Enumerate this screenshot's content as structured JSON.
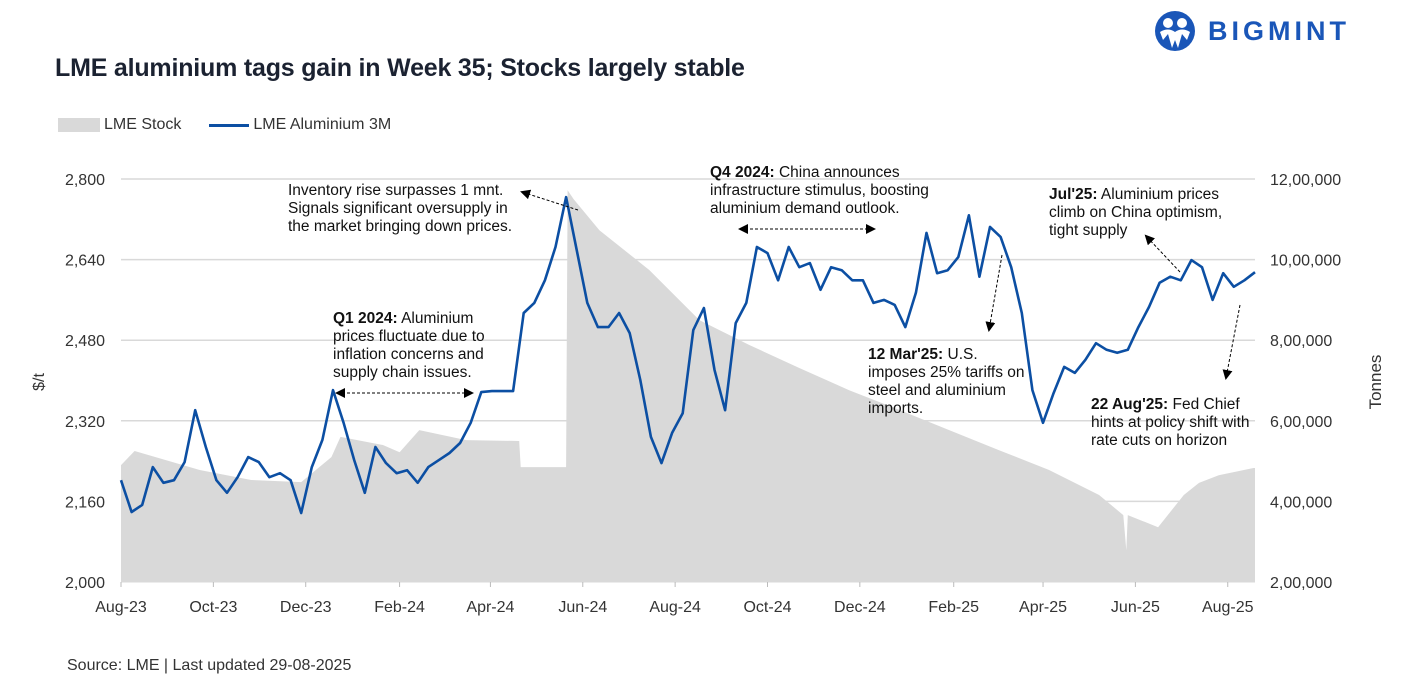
{
  "logo": {
    "text": "BIGMINT",
    "color": "#1a56b8"
  },
  "title": "LME aluminium tags gain in Week 35; Stocks largely stable",
  "source": "Source: LME | Last updated 29-08-2025",
  "chart_data": {
    "type": "line",
    "title": "LME aluminium tags gain in Week 35; Stocks largely stable",
    "legend": {
      "placement": "top-left",
      "entries": [
        "LME Stock",
        "LME Aluminium 3M"
      ]
    },
    "grid": true,
    "x_axis": {
      "type": "date",
      "range": [
        "2023-08-01",
        "2025-08-19"
      ],
      "ticks": [
        {
          "date": "2023-08-01",
          "label": "Aug-23"
        },
        {
          "date": "2023-10-01",
          "label": "Oct-23"
        },
        {
          "date": "2023-12-01",
          "label": "Dec-23"
        },
        {
          "date": "2024-02-01",
          "label": "Feb-24"
        },
        {
          "date": "2024-04-01",
          "label": "Apr-24"
        },
        {
          "date": "2024-06-01",
          "label": "Jun-24"
        },
        {
          "date": "2024-08-01",
          "label": "Aug-24"
        },
        {
          "date": "2024-10-01",
          "label": "Oct-24"
        },
        {
          "date": "2024-12-01",
          "label": "Dec-24"
        },
        {
          "date": "2025-02-01",
          "label": "Feb-25"
        },
        {
          "date": "2025-04-01",
          "label": "Apr-25"
        },
        {
          "date": "2025-06-01",
          "label": "Jun-25"
        },
        {
          "date": "2025-08-01",
          "label": "Aug-25"
        }
      ]
    },
    "y_left": {
      "label": "$/t",
      "range": [
        2000,
        2800
      ],
      "ticks": [
        2000,
        2160,
        2320,
        2480,
        2640,
        2800
      ],
      "tick_labels": [
        "2,000",
        "2,160",
        "2,320",
        "2,480",
        "2,640",
        "2,800"
      ]
    },
    "y_right": {
      "label": "Tonnes",
      "range": [
        200000,
        1200000
      ],
      "ticks": [
        200000,
        400000,
        600000,
        800000,
        1000000,
        1200000
      ],
      "tick_labels": [
        "2,00,000",
        "4,00,000",
        "6,00,000",
        "8,00,000",
        "10,00,000",
        "12,00,000"
      ]
    },
    "series": [
      {
        "name": "LME Stock",
        "type": "area",
        "axis": "right",
        "color": "#d9d9d9",
        "points": [
          [
            "2023-08-01",
            490000
          ],
          [
            "2023-08-10",
            525000
          ],
          [
            "2023-09-22",
            478000
          ],
          [
            "2023-10-26",
            453000
          ],
          [
            "2023-11-28",
            448000
          ],
          [
            "2023-12-18",
            510000
          ],
          [
            "2023-12-24",
            560000
          ],
          [
            "2024-01-21",
            540000
          ],
          [
            "2024-02-01",
            522000
          ],
          [
            "2024-02-14",
            577000
          ],
          [
            "2024-03-16",
            552000
          ],
          [
            "2024-04-20",
            550000
          ],
          [
            "2024-04-21",
            485000
          ],
          [
            "2024-05-21",
            485000
          ],
          [
            "2024-05-22",
            1172000
          ],
          [
            "2024-05-26",
            1150000
          ],
          [
            "2024-06-12",
            1073000
          ],
          [
            "2024-07-15",
            974000
          ],
          [
            "2024-08-17",
            850000
          ],
          [
            "2024-09-19",
            788000
          ],
          [
            "2024-10-22",
            731000
          ],
          [
            "2024-11-24",
            676000
          ],
          [
            "2024-12-27",
            627000
          ],
          [
            "2025-01-29",
            577000
          ],
          [
            "2025-03-03",
            527000
          ],
          [
            "2025-04-05",
            478000
          ],
          [
            "2025-05-08",
            416000
          ],
          [
            "2025-05-24",
            366000
          ],
          [
            "2025-05-26",
            279000
          ],
          [
            "2025-05-27",
            366000
          ],
          [
            "2025-06-16",
            336000
          ],
          [
            "2025-07-03",
            416000
          ],
          [
            "2025-07-13",
            446000
          ],
          [
            "2025-07-26",
            465000
          ],
          [
            "2025-08-18",
            483000
          ]
        ]
      },
      {
        "name": "LME Aluminium 3M",
        "type": "line",
        "axis": "left",
        "color": "#0c4fa3",
        "points": [
          [
            "2023-08-01",
            2202
          ],
          [
            "2023-08-08",
            2139
          ],
          [
            "2023-08-15",
            2153
          ],
          [
            "2023-08-22",
            2228
          ],
          [
            "2023-08-29",
            2197
          ],
          [
            "2023-09-05",
            2202
          ],
          [
            "2023-09-12",
            2238
          ],
          [
            "2023-09-19",
            2341
          ],
          [
            "2023-09-26",
            2268
          ],
          [
            "2023-10-03",
            2202
          ],
          [
            "2023-10-10",
            2177
          ],
          [
            "2023-10-17",
            2208
          ],
          [
            "2023-10-24",
            2248
          ],
          [
            "2023-10-31",
            2238
          ],
          [
            "2023-11-07",
            2208
          ],
          [
            "2023-11-14",
            2216
          ],
          [
            "2023-11-21",
            2202
          ],
          [
            "2023-11-28",
            2137
          ],
          [
            "2023-12-05",
            2228
          ],
          [
            "2023-12-12",
            2282
          ],
          [
            "2023-12-19",
            2381
          ],
          [
            "2023-12-26",
            2316
          ],
          [
            "2024-01-02",
            2242
          ],
          [
            "2024-01-09",
            2177
          ],
          [
            "2024-01-16",
            2268
          ],
          [
            "2024-01-23",
            2236
          ],
          [
            "2024-01-30",
            2216
          ],
          [
            "2024-02-06",
            2222
          ],
          [
            "2024-02-13",
            2197
          ],
          [
            "2024-02-20",
            2228
          ],
          [
            "2024-02-27",
            2242
          ],
          [
            "2024-03-05",
            2256
          ],
          [
            "2024-03-12",
            2276
          ],
          [
            "2024-03-19",
            2316
          ],
          [
            "2024-03-26",
            2377
          ],
          [
            "2024-04-02",
            2379
          ],
          [
            "2024-04-09",
            2379
          ],
          [
            "2024-04-16",
            2379
          ],
          [
            "2024-04-23",
            2534
          ],
          [
            "2024-04-30",
            2554
          ],
          [
            "2024-05-07",
            2599
          ],
          [
            "2024-05-14",
            2665
          ],
          [
            "2024-05-21",
            2764
          ],
          [
            "2024-05-28",
            2659
          ],
          [
            "2024-06-04",
            2554
          ],
          [
            "2024-06-11",
            2506
          ],
          [
            "2024-06-18",
            2506
          ],
          [
            "2024-06-25",
            2534
          ],
          [
            "2024-07-02",
            2494
          ],
          [
            "2024-07-09",
            2401
          ],
          [
            "2024-07-16",
            2288
          ],
          [
            "2024-07-23",
            2236
          ],
          [
            "2024-07-30",
            2296
          ],
          [
            "2024-08-06",
            2335
          ],
          [
            "2024-08-13",
            2500
          ],
          [
            "2024-08-20",
            2544
          ],
          [
            "2024-08-27",
            2421
          ],
          [
            "2024-09-03",
            2341
          ],
          [
            "2024-09-10",
            2514
          ],
          [
            "2024-09-17",
            2554
          ],
          [
            "2024-09-24",
            2665
          ],
          [
            "2024-10-01",
            2653
          ],
          [
            "2024-10-08",
            2599
          ],
          [
            "2024-10-15",
            2665
          ],
          [
            "2024-10-22",
            2625
          ],
          [
            "2024-10-29",
            2633
          ],
          [
            "2024-11-05",
            2580
          ],
          [
            "2024-11-12",
            2625
          ],
          [
            "2024-11-19",
            2619
          ],
          [
            "2024-11-26",
            2599
          ],
          [
            "2024-12-03",
            2599
          ],
          [
            "2024-12-10",
            2554
          ],
          [
            "2024-12-17",
            2560
          ],
          [
            "2024-12-24",
            2550
          ],
          [
            "2024-12-31",
            2506
          ],
          [
            "2025-01-07",
            2574
          ],
          [
            "2025-01-14",
            2693
          ],
          [
            "2025-01-21",
            2613
          ],
          [
            "2025-01-28",
            2619
          ],
          [
            "2025-02-04",
            2645
          ],
          [
            "2025-02-11",
            2728
          ],
          [
            "2025-02-18",
            2606
          ],
          [
            "2025-02-25",
            2705
          ],
          [
            "2025-03-04",
            2685
          ],
          [
            "2025-03-11",
            2625
          ],
          [
            "2025-03-18",
            2534
          ],
          [
            "2025-03-25",
            2381
          ],
          [
            "2025-04-01",
            2316
          ],
          [
            "2025-04-08",
            2375
          ],
          [
            "2025-04-15",
            2427
          ],
          [
            "2025-04-22",
            2415
          ],
          [
            "2025-04-29",
            2441
          ],
          [
            "2025-05-06",
            2474
          ],
          [
            "2025-05-13",
            2461
          ],
          [
            "2025-05-20",
            2455
          ],
          [
            "2025-05-27",
            2461
          ],
          [
            "2025-06-03",
            2506
          ],
          [
            "2025-06-10",
            2546
          ],
          [
            "2025-06-17",
            2594
          ],
          [
            "2025-06-24",
            2606
          ],
          [
            "2025-07-01",
            2599
          ],
          [
            "2025-07-08",
            2639
          ],
          [
            "2025-07-15",
            2625
          ],
          [
            "2025-07-22",
            2560
          ],
          [
            "2025-07-29",
            2613
          ],
          [
            "2025-08-05",
            2586
          ],
          [
            "2025-08-12",
            2599
          ],
          [
            "2025-08-19",
            2615
          ]
        ]
      }
    ],
    "annotations": [
      {
        "bold": "",
        "text": "Inventory rise surpasses 1 mnt. Signals significant oversupply in the market bringing down prices."
      },
      {
        "bold": "Q1 2024:",
        "text": " Aluminium prices fluctuate due to inflation concerns and supply chain issues."
      },
      {
        "bold": "Q4 2024:",
        "text": " China announces infrastructure stimulus, boosting aluminium demand outlook."
      },
      {
        "bold": "12 Mar'25:",
        "text": " U.S. imposes 25% tariffs on steel and aluminium imports."
      },
      {
        "bold": "Jul'25:",
        "text": " Aluminium prices climb on China optimism, tight supply"
      },
      {
        "bold": "22 Aug'25:",
        "text": " Fed Chief hints at policy shift with rate cuts on horizon"
      }
    ]
  }
}
